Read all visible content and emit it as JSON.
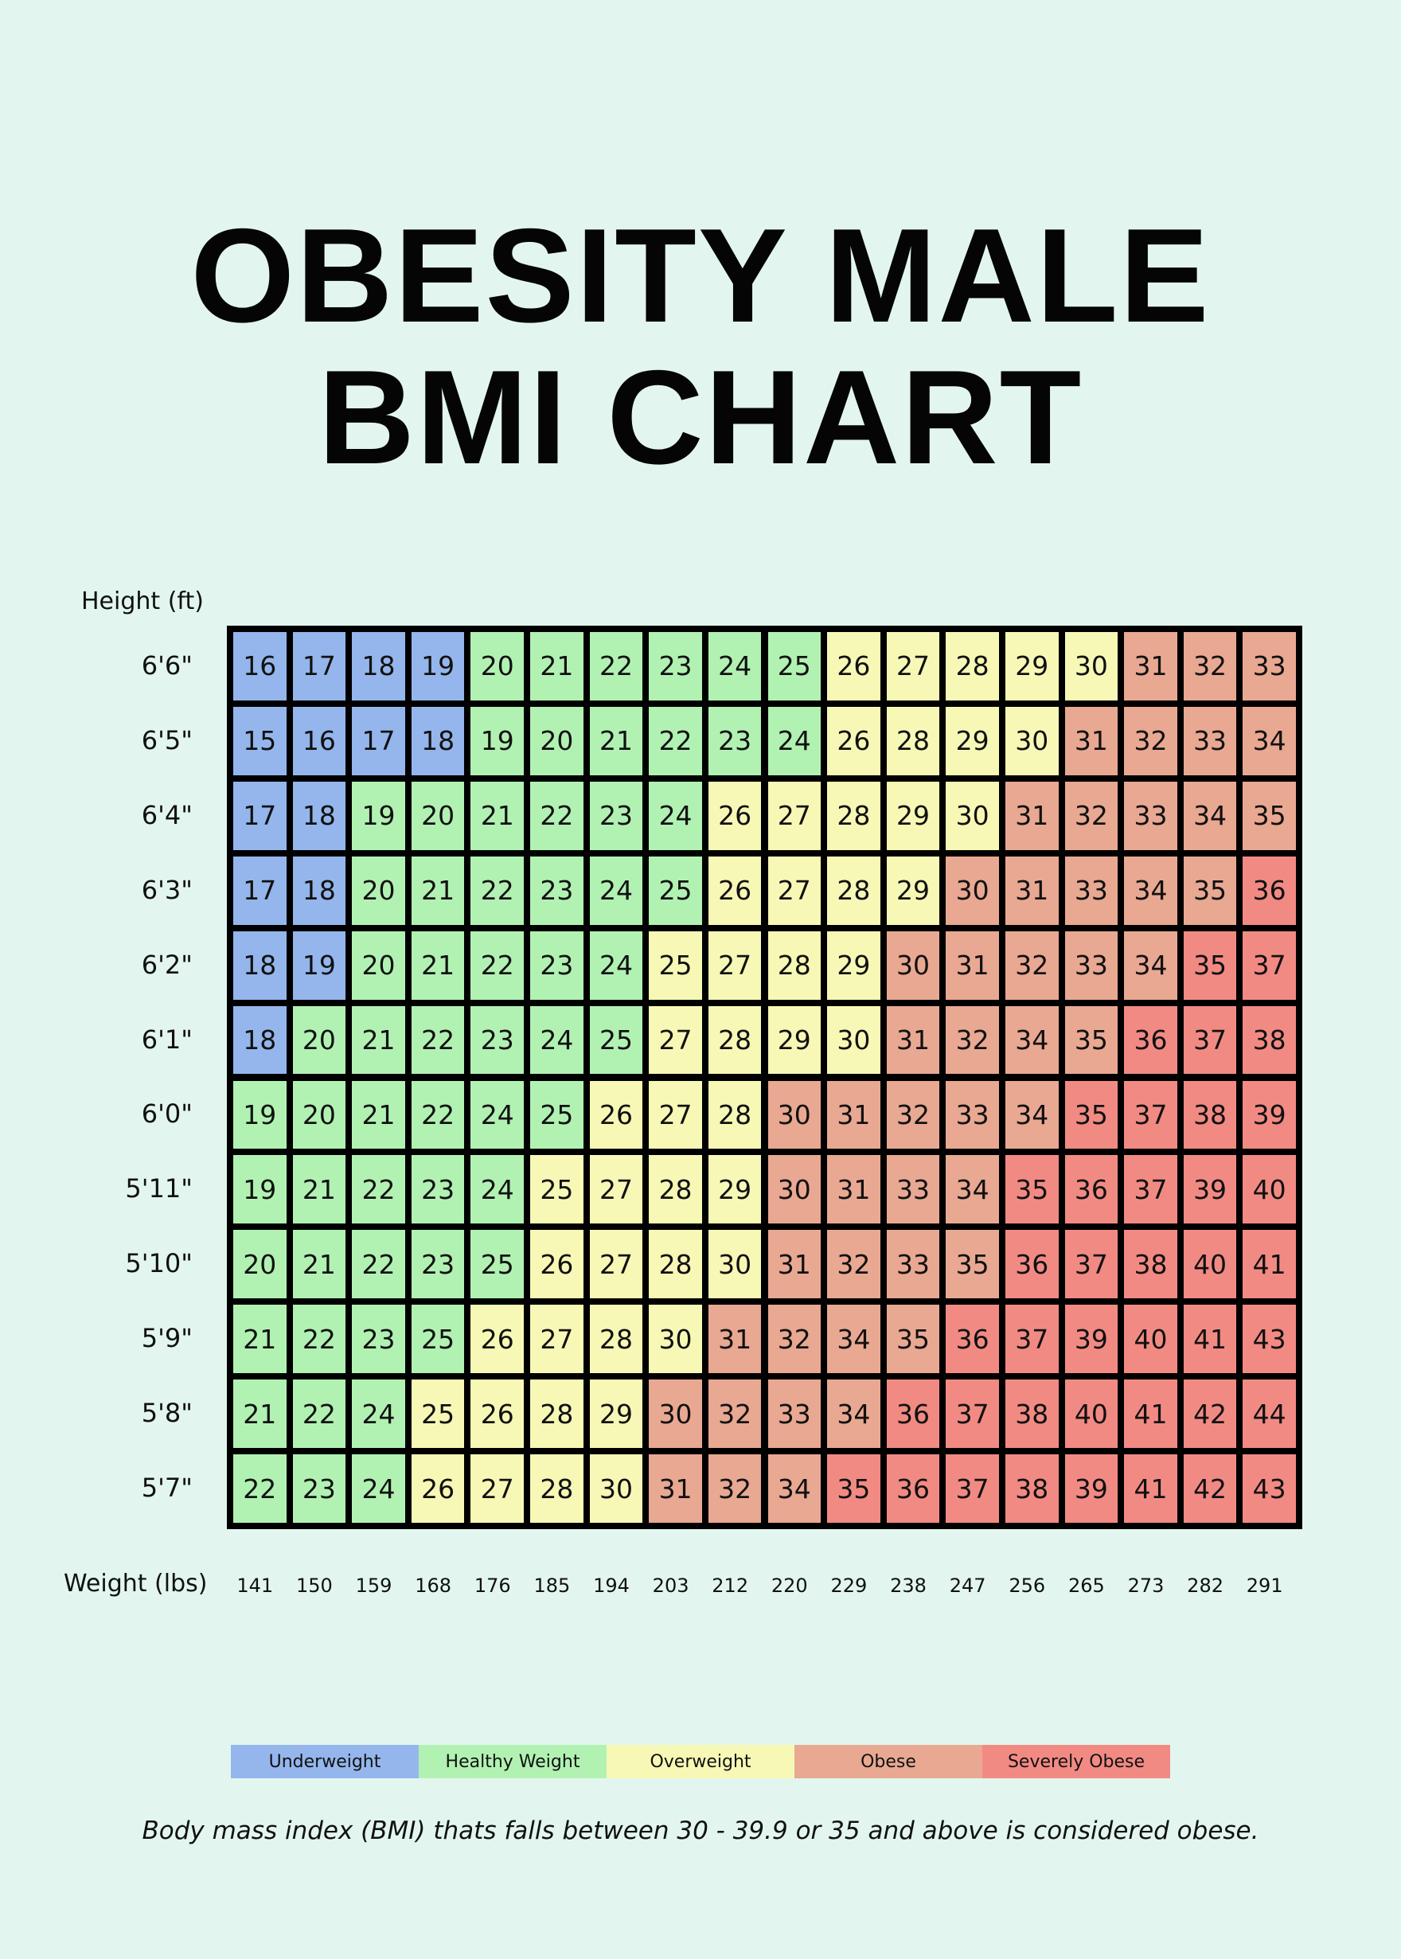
{
  "chart_data": {
    "type": "heatmap",
    "title": "OBESITY MALE BMI CHART",
    "title_lines": [
      "OBESITY MALE",
      "BMI CHART"
    ],
    "ylabel": "Height (ft)",
    "xlabel": "Weight (lbs)",
    "rows": [
      "6'6\"",
      "6'5\"",
      "6'4\"",
      "6'3\"",
      "6'2\"",
      "6'1\"",
      "6'0\"",
      "5'11\"",
      "5'10\"",
      "5'9\"",
      "5'8\"",
      "5'7\""
    ],
    "columns": [
      "141",
      "150",
      "159",
      "168",
      "176",
      "185",
      "194",
      "203",
      "212",
      "220",
      "229",
      "238",
      "247",
      "256",
      "265",
      "273",
      "282",
      "291"
    ],
    "values": [
      [
        16,
        17,
        18,
        19,
        20,
        21,
        22,
        23,
        24,
        25,
        26,
        27,
        28,
        29,
        30,
        31,
        32,
        33
      ],
      [
        15,
        16,
        17,
        18,
        19,
        20,
        21,
        22,
        23,
        24,
        26,
        28,
        29,
        30,
        31,
        32,
        33,
        34
      ],
      [
        17,
        18,
        19,
        20,
        21,
        22,
        23,
        24,
        26,
        27,
        28,
        29,
        30,
        31,
        32,
        33,
        34,
        35
      ],
      [
        17,
        18,
        20,
        21,
        22,
        23,
        24,
        25,
        26,
        27,
        28,
        29,
        30,
        31,
        33,
        34,
        35,
        36
      ],
      [
        18,
        19,
        20,
        21,
        22,
        23,
        24,
        25,
        27,
        28,
        29,
        30,
        31,
        32,
        33,
        34,
        35,
        37
      ],
      [
        18,
        20,
        21,
        22,
        23,
        24,
        25,
        27,
        28,
        29,
        30,
        31,
        32,
        34,
        35,
        36,
        37,
        38
      ],
      [
        19,
        20,
        21,
        22,
        24,
        25,
        26,
        27,
        28,
        30,
        31,
        32,
        33,
        34,
        35,
        37,
        38,
        39
      ],
      [
        19,
        21,
        22,
        23,
        24,
        25,
        27,
        28,
        29,
        30,
        31,
        33,
        34,
        35,
        36,
        37,
        39,
        40
      ],
      [
        20,
        21,
        22,
        23,
        25,
        26,
        27,
        28,
        30,
        31,
        32,
        33,
        35,
        36,
        37,
        38,
        40,
        41
      ],
      [
        21,
        22,
        23,
        25,
        26,
        27,
        28,
        30,
        31,
        32,
        34,
        35,
        36,
        37,
        39,
        40,
        41,
        43
      ],
      [
        21,
        22,
        24,
        25,
        26,
        28,
        29,
        30,
        32,
        33,
        34,
        36,
        37,
        38,
        40,
        41,
        42,
        44
      ],
      [
        22,
        23,
        24,
        26,
        27,
        28,
        30,
        31,
        32,
        34,
        35,
        36,
        37,
        38,
        39,
        41,
        42,
        43
      ]
    ],
    "category_index": [
      [
        0,
        0,
        0,
        0,
        1,
        1,
        1,
        1,
        1,
        1,
        2,
        2,
        2,
        2,
        2,
        3,
        3,
        3
      ],
      [
        0,
        0,
        0,
        0,
        1,
        1,
        1,
        1,
        1,
        1,
        2,
        2,
        2,
        2,
        3,
        3,
        3,
        3
      ],
      [
        0,
        0,
        1,
        1,
        1,
        1,
        1,
        1,
        2,
        2,
        2,
        2,
        2,
        3,
        3,
        3,
        3,
        3
      ],
      [
        0,
        0,
        1,
        1,
        1,
        1,
        1,
        1,
        2,
        2,
        2,
        2,
        3,
        3,
        3,
        3,
        3,
        4
      ],
      [
        0,
        0,
        1,
        1,
        1,
        1,
        1,
        2,
        2,
        2,
        2,
        3,
        3,
        3,
        3,
        3,
        4,
        4
      ],
      [
        0,
        1,
        1,
        1,
        1,
        1,
        1,
        2,
        2,
        2,
        2,
        3,
        3,
        3,
        3,
        4,
        4,
        4
      ],
      [
        1,
        1,
        1,
        1,
        1,
        1,
        2,
        2,
        2,
        3,
        3,
        3,
        3,
        3,
        4,
        4,
        4,
        4
      ],
      [
        1,
        1,
        1,
        1,
        1,
        2,
        2,
        2,
        2,
        3,
        3,
        3,
        3,
        4,
        4,
        4,
        4,
        4
      ],
      [
        1,
        1,
        1,
        1,
        1,
        2,
        2,
        2,
        2,
        3,
        3,
        3,
        3,
        4,
        4,
        4,
        4,
        4
      ],
      [
        1,
        1,
        1,
        1,
        2,
        2,
        2,
        2,
        3,
        3,
        3,
        3,
        4,
        4,
        4,
        4,
        4,
        4
      ],
      [
        1,
        1,
        1,
        2,
        2,
        2,
        2,
        3,
        3,
        3,
        3,
        4,
        4,
        4,
        4,
        4,
        4,
        4
      ],
      [
        1,
        1,
        1,
        2,
        2,
        2,
        2,
        3,
        3,
        3,
        4,
        4,
        4,
        4,
        4,
        4,
        4,
        4
      ]
    ],
    "legend": [
      {
        "label": "Underweight",
        "color": "#94b6ec"
      },
      {
        "label": "Healthy Weight",
        "color": "#b1f2b3"
      },
      {
        "label": "Overweight",
        "color": "#f8f8b6"
      },
      {
        "label": "Obese",
        "color": "#e9a892"
      },
      {
        "label": "Severely Obese",
        "color": "#f28a84"
      }
    ],
    "legend_placement": "bottom",
    "note": "Body mass index (BMI) thats falls between 30 - 39.9 or 35 and above is considered obese."
  }
}
